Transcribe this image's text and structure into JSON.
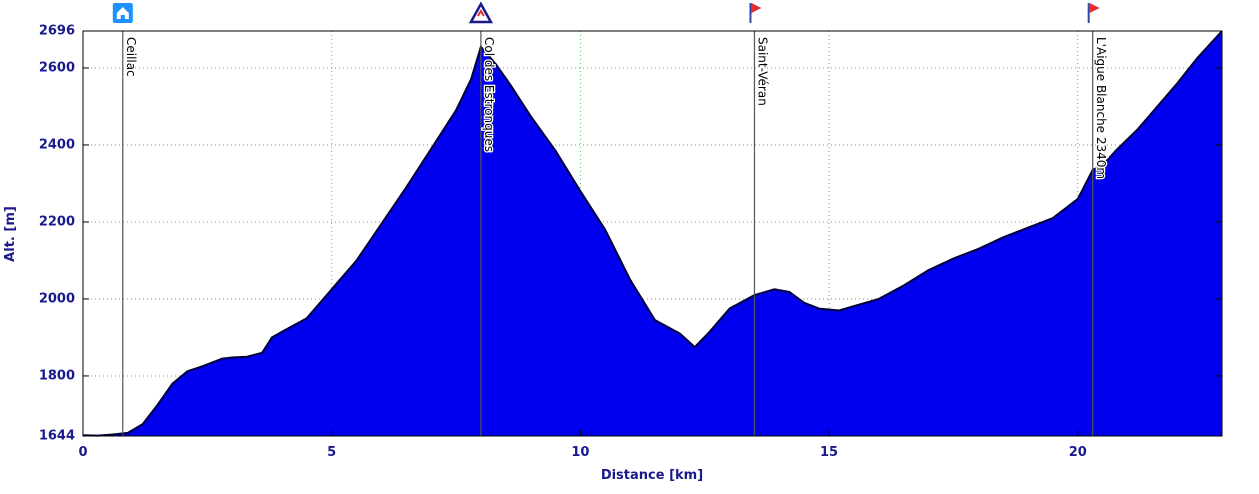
{
  "chart_data": {
    "type": "area",
    "title": "",
    "xlabel": "Distance [km]",
    "ylabel": "Alt. [m]",
    "xlim": [
      0,
      22.9
    ],
    "ylim": [
      1644,
      2696
    ],
    "x_ticks": [
      0,
      5,
      10,
      15,
      20
    ],
    "y_ticks": [
      1644,
      1800,
      2000,
      2200,
      2400,
      2600,
      2696
    ],
    "grid": true,
    "fill_color": "#0000ee",
    "line_color": "#00003a",
    "waypoints": [
      {
        "name": "Ceillac",
        "x": 0.8,
        "icon": "home-icon",
        "icon_color": "#1e90ff"
      },
      {
        "name": "Col des Estronques",
        "x": 8.0,
        "icon": "summit-icon",
        "icon_color": "#1a1a8c"
      },
      {
        "name": "Saint-Véran",
        "x": 13.5,
        "icon": "flag-icon",
        "icon_color": "#3344aa"
      },
      {
        "name": "L'Aigue Blanche 2340m",
        "x": 20.3,
        "icon": "flag-icon",
        "icon_color": "#3344aa"
      }
    ],
    "x": [
      0,
      0.3,
      0.6,
      0.9,
      1.2,
      1.5,
      1.8,
      2.1,
      2.4,
      2.8,
      3.0,
      3.3,
      3.6,
      3.8,
      4.0,
      4.5,
      5.0,
      5.5,
      6.0,
      6.5,
      7.0,
      7.5,
      7.8,
      8.0,
      8.3,
      8.6,
      9.0,
      9.5,
      10.0,
      10.5,
      11.0,
      11.5,
      12.0,
      12.3,
      12.6,
      13.0,
      13.5,
      13.9,
      14.2,
      14.5,
      14.8,
      15.2,
      15.6,
      16.0,
      16.5,
      17.0,
      17.5,
      18.0,
      18.5,
      19.0,
      19.5,
      20.0,
      20.3,
      20.5,
      20.8,
      21.2,
      21.6,
      22.0,
      22.4,
      22.9
    ],
    "y": [
      1646,
      1645,
      1648,
      1652,
      1675,
      1725,
      1780,
      1812,
      1825,
      1845,
      1848,
      1850,
      1860,
      1900,
      1915,
      1950,
      2025,
      2100,
      2195,
      2290,
      2390,
      2490,
      2570,
      2655,
      2610,
      2555,
      2475,
      2385,
      2280,
      2180,
      2050,
      1945,
      1910,
      1875,
      1915,
      1975,
      2010,
      2025,
      2018,
      1990,
      1975,
      1970,
      1985,
      2000,
      2035,
      2075,
      2105,
      2130,
      2160,
      2185,
      2210,
      2260,
      2335,
      2348,
      2390,
      2440,
      2500,
      2560,
      2625,
      2696
    ]
  }
}
